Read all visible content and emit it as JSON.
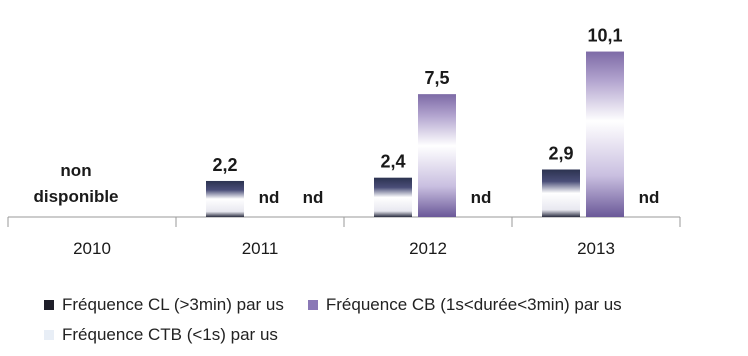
{
  "chart_data": {
    "type": "bar",
    "categories": [
      "2010",
      "2011",
      "2012",
      "2013"
    ],
    "series": [
      {
        "name": "Fréquence CL (>3min) par us",
        "color": "#2b2f45",
        "values": [
          null,
          2.2,
          2.4,
          2.9
        ],
        "labels": [
          "",
          "2,2",
          "2,4",
          "2,9"
        ]
      },
      {
        "name": "Fréquence CB (1s<durée<3min) par us",
        "color": "#8a78b6",
        "values": [
          null,
          null,
          7.5,
          10.1
        ],
        "labels": [
          "",
          "nd",
          "7,5",
          "10,1"
        ]
      },
      {
        "name": "Fréquence CTB (<1s) par us",
        "color": "#dde6f2",
        "values": [
          null,
          null,
          null,
          null
        ],
        "labels": [
          "",
          "nd",
          "nd",
          "nd"
        ]
      }
    ],
    "annotation": {
      "line1": "non",
      "line2": "disponible"
    },
    "ylim": [
      0,
      10.5
    ],
    "grid": false,
    "legend_position": "bottom"
  }
}
